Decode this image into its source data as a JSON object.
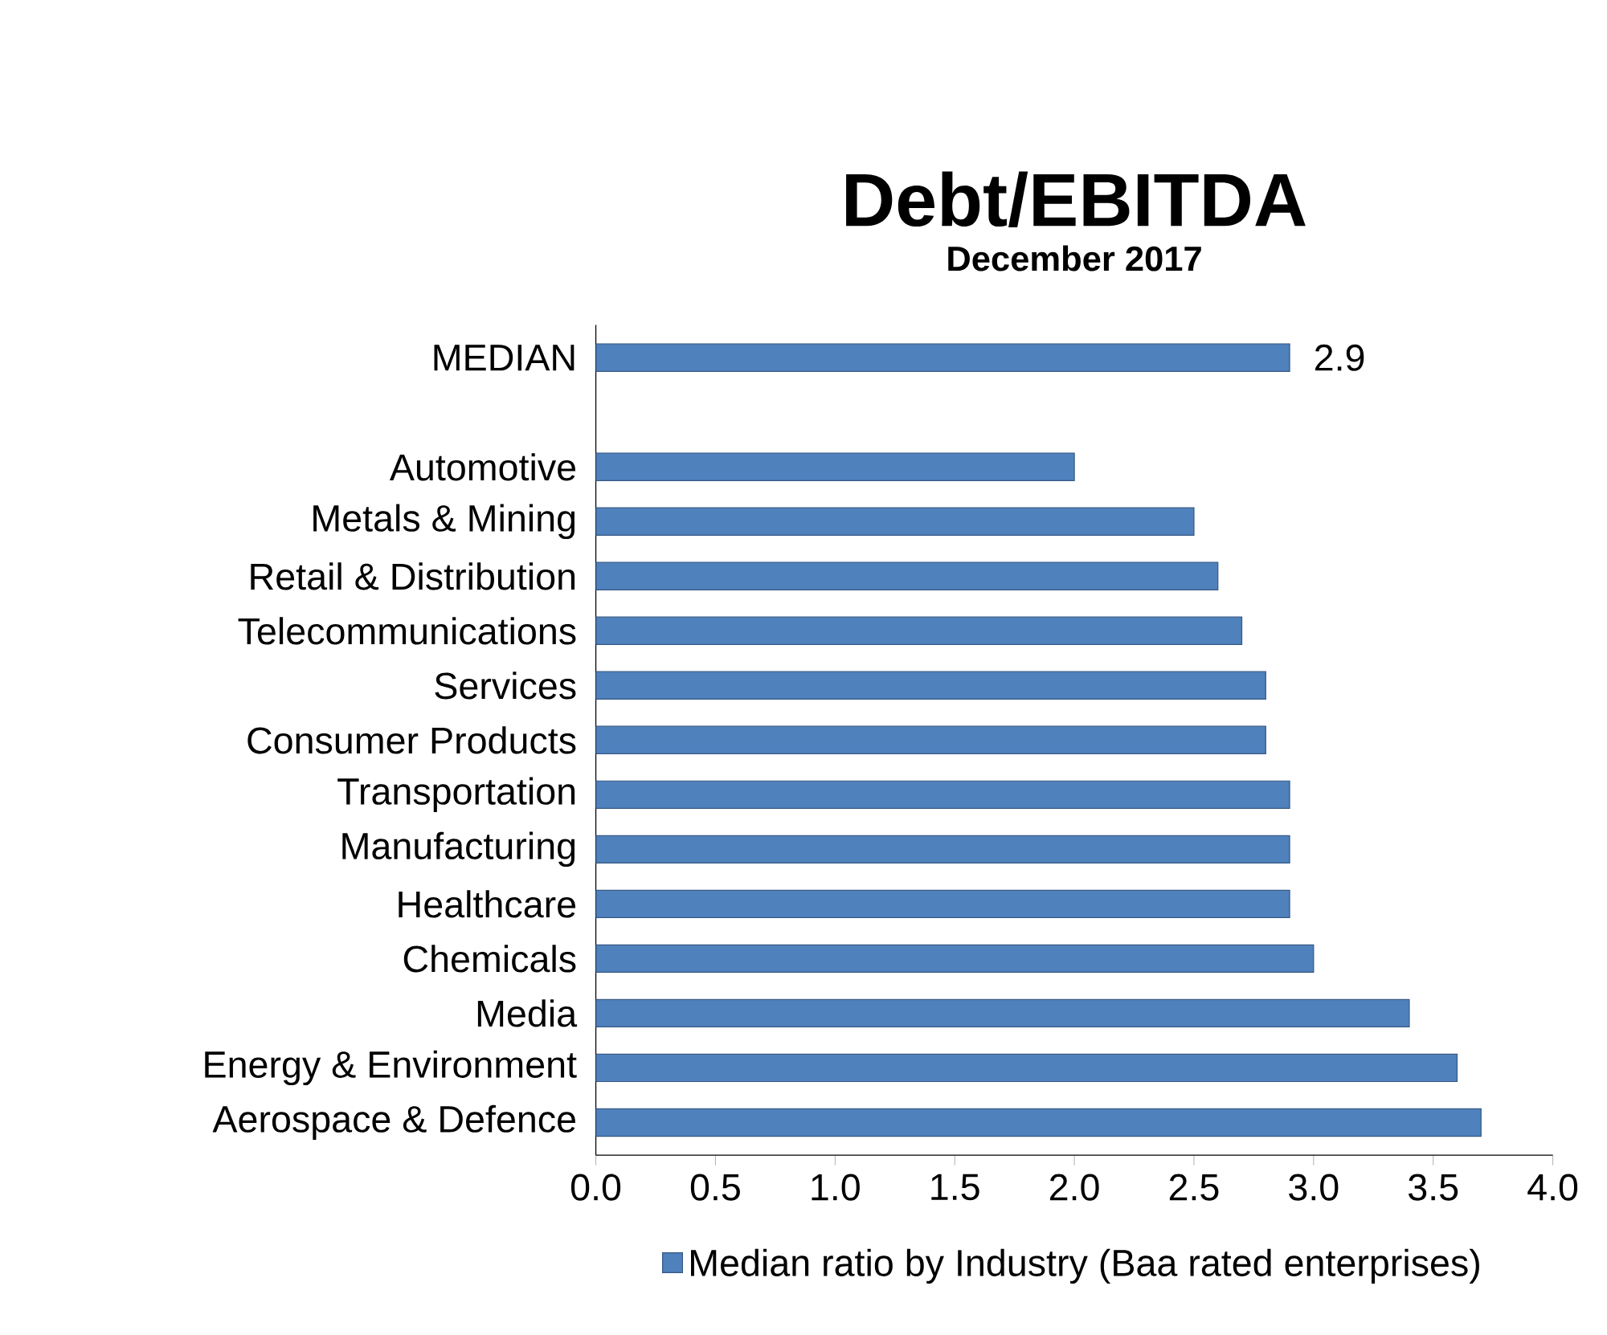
{
  "chart_data": {
    "type": "bar",
    "orientation": "horizontal",
    "title": "Debt/EBITDA",
    "subtitle": "December 2017",
    "categories": [
      "MEDIAN",
      null,
      "Automotive",
      "Metals & Mining",
      "Retail & Distribution",
      "Telecommunications",
      "Services",
      "Consumer Products",
      "Transportation",
      "Manufacturing",
      "Healthcare",
      "Chemicals",
      "Media",
      "Energy & Environment",
      "Aerospace & Defence"
    ],
    "series": [
      {
        "name": "Median ratio by Industry (Baa rated enterprises)",
        "color": "#4f81bd",
        "values": [
          2.9,
          null,
          2.0,
          2.5,
          2.6,
          2.7,
          2.8,
          2.8,
          2.9,
          2.9,
          2.9,
          3.0,
          3.4,
          3.6,
          3.7
        ],
        "value_labels": [
          "2.9",
          null,
          null,
          null,
          null,
          null,
          null,
          null,
          null,
          null,
          null,
          null,
          null,
          null,
          null
        ]
      }
    ],
    "xlim": [
      0,
      4
    ],
    "xticks": [
      {
        "value": 0,
        "label": "0.0"
      },
      {
        "value": 0.5,
        "label": "0.5"
      },
      {
        "value": 1,
        "label": "1.0"
      },
      {
        "value": 1.5,
        "label": "1.5"
      },
      {
        "value": 2,
        "label": "2.0"
      },
      {
        "value": 2.5,
        "label": "2.5"
      },
      {
        "value": 3,
        "label": "3.0"
      },
      {
        "value": 3.5,
        "label": "3.5"
      },
      {
        "value": 4,
        "label": "4.0"
      }
    ],
    "legend": "bottom",
    "grid": false
  }
}
